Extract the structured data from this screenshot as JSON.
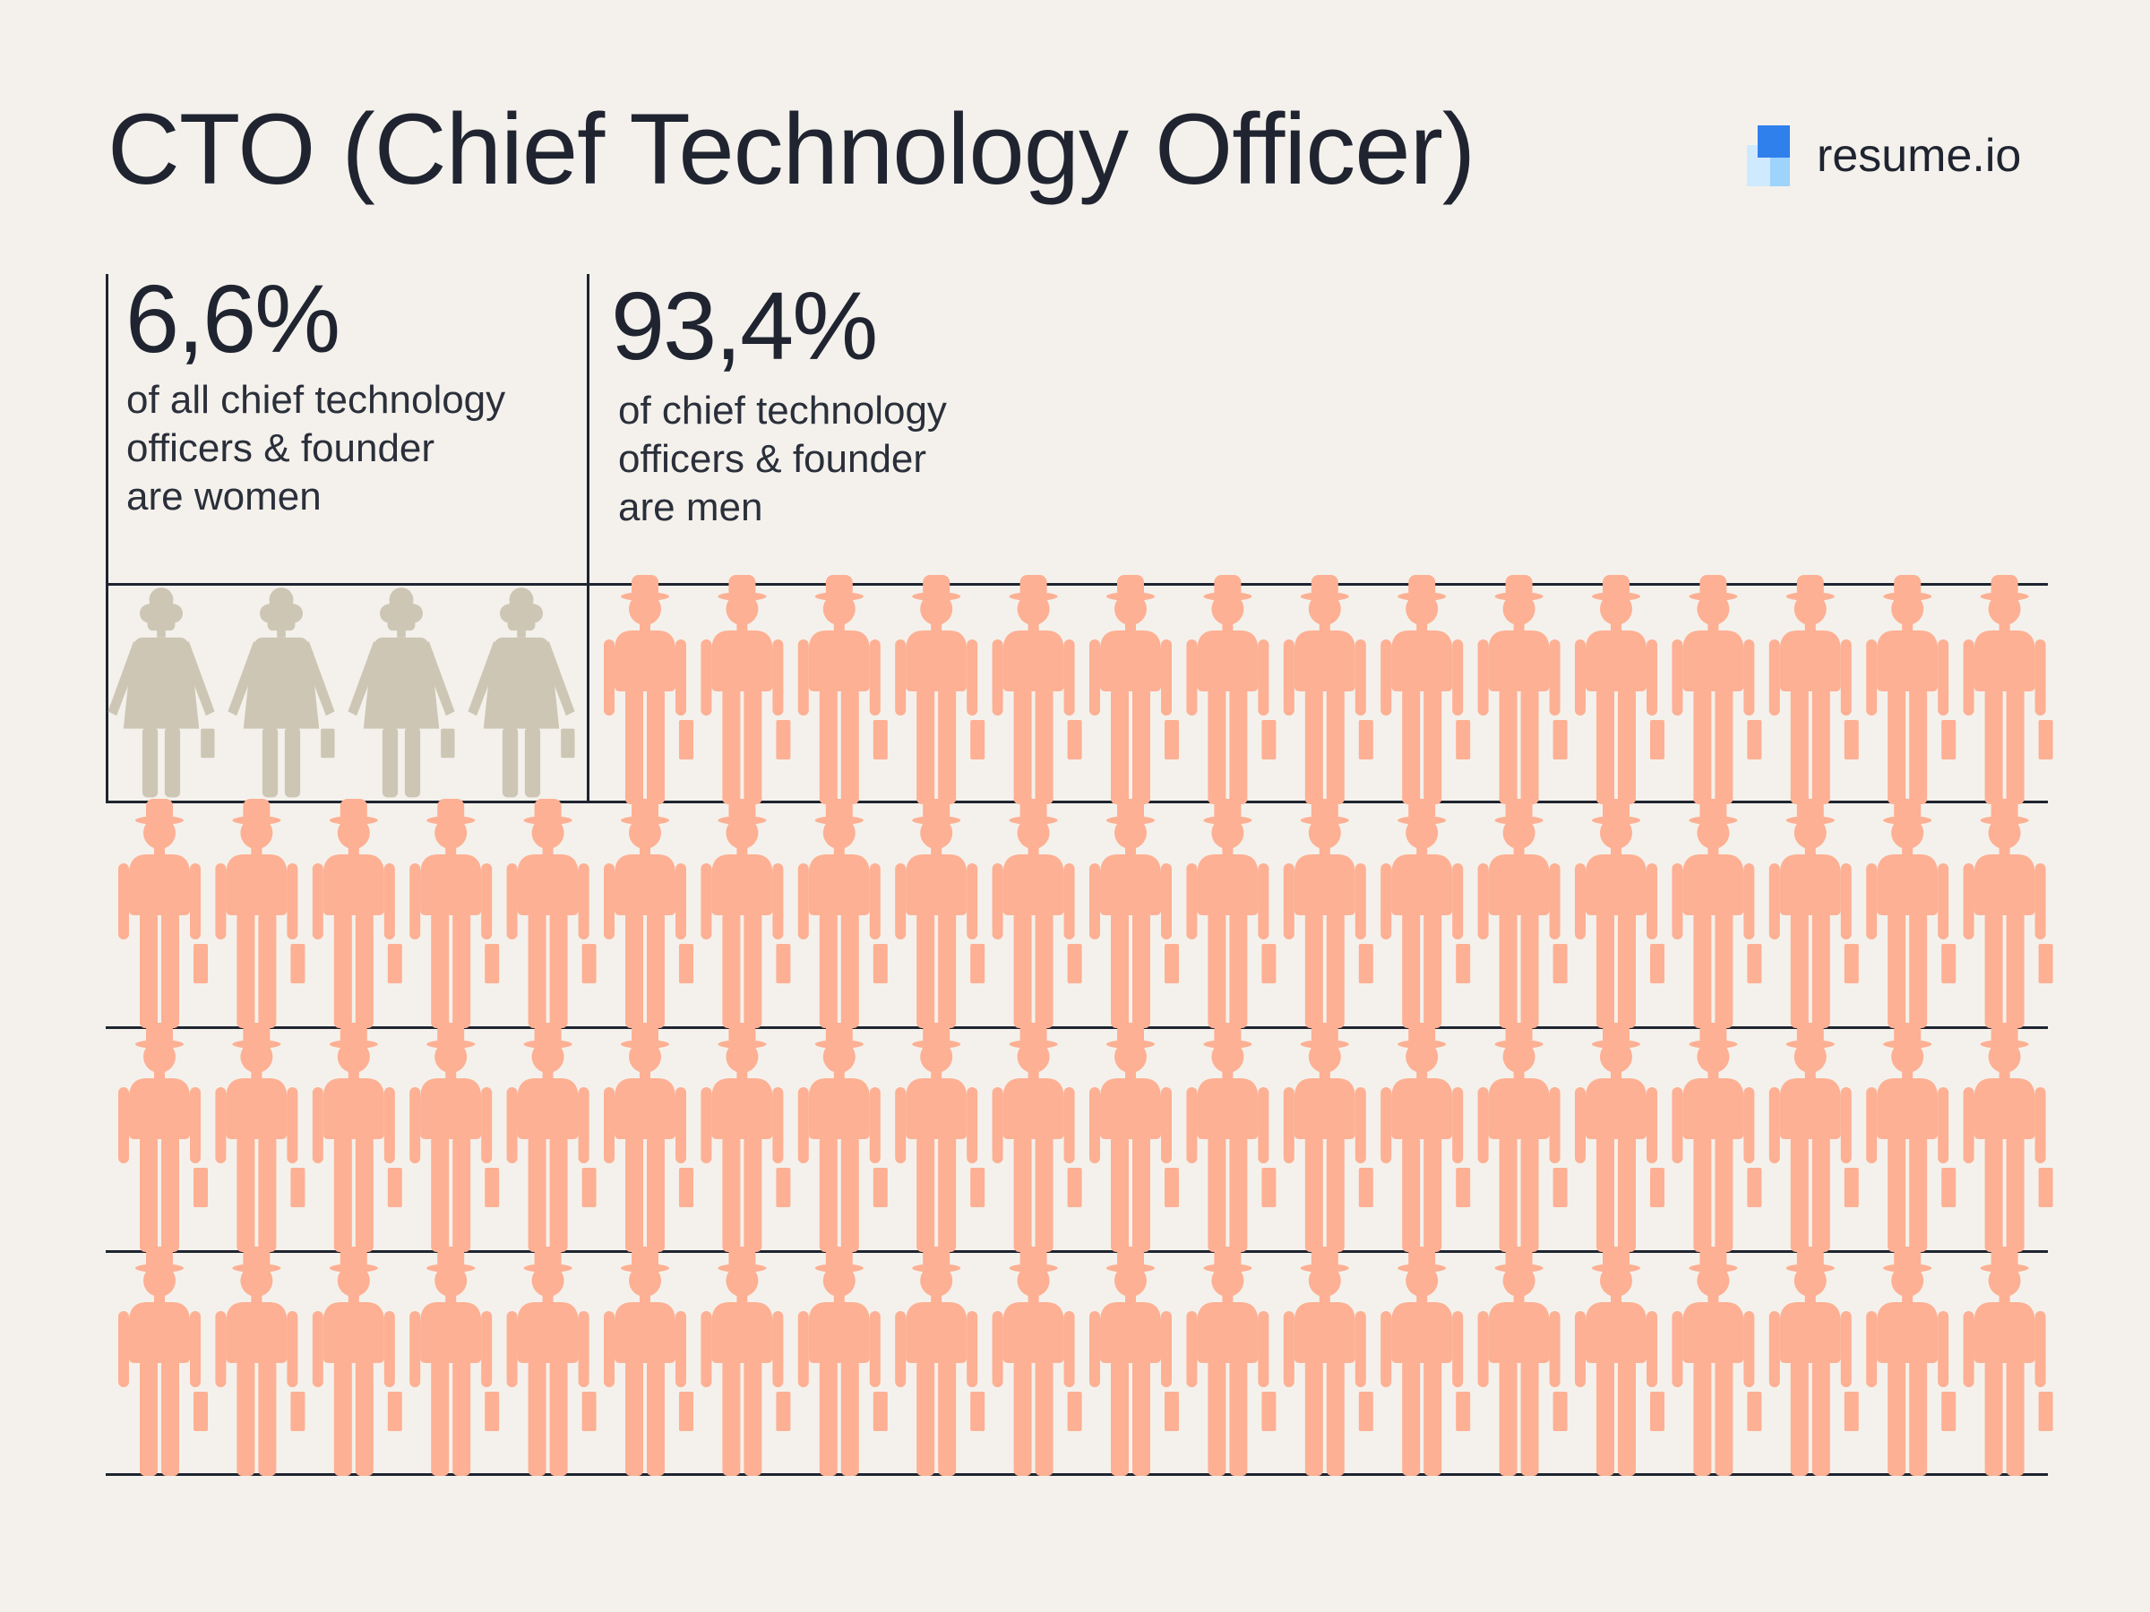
{
  "title": "CTO (Chief Technology Officer)",
  "logo": {
    "text": "resume.io",
    "icon": "resume-io-logo-icon"
  },
  "women": {
    "percent": "6,6%",
    "description_lines": [
      "of all chief technology",
      "officers & founder",
      "are women"
    ],
    "icon_count": 4,
    "color": "#cdc6b4",
    "icon": "woman-figure-icon"
  },
  "men": {
    "percent": "93,4%",
    "description_lines": [
      "of chief technology",
      "officers & founder",
      "are men"
    ],
    "icon_count": 75,
    "color": "#fdb093",
    "icon": "man-figure-icon"
  },
  "colors": {
    "background": "#f4f1ec",
    "text": "#1f2430",
    "rule": "#1f2430",
    "logo_blue": "#2f80ed",
    "logo_light": "#9ed3fb"
  }
}
